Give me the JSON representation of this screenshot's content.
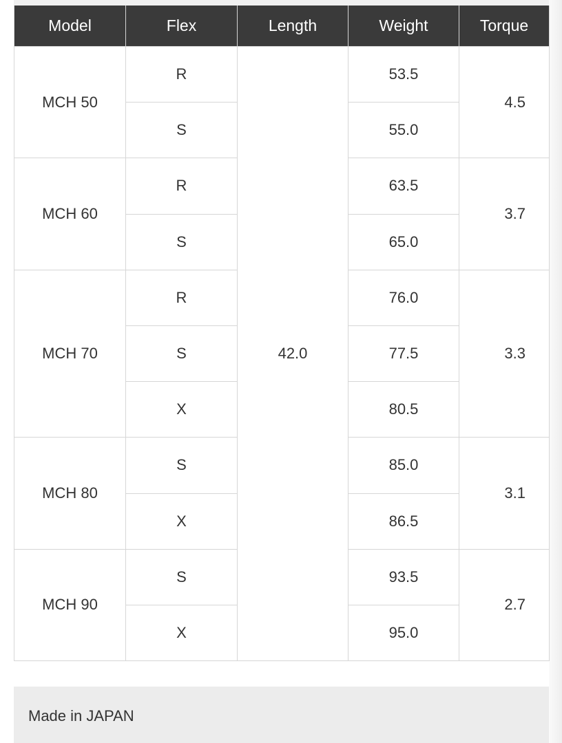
{
  "table": {
    "headers": [
      "Model",
      "Flex",
      "Length",
      "Weight",
      "Torque"
    ],
    "length": "42.0",
    "models": [
      {
        "name": "MCH 50",
        "torque": "4.5",
        "variants": [
          {
            "flex": "R",
            "weight": "53.5"
          },
          {
            "flex": "S",
            "weight": "55.0"
          }
        ]
      },
      {
        "name": "MCH 60",
        "torque": "3.7",
        "variants": [
          {
            "flex": "R",
            "weight": "63.5"
          },
          {
            "flex": "S",
            "weight": "65.0"
          }
        ]
      },
      {
        "name": "MCH 70",
        "torque": "3.3",
        "variants": [
          {
            "flex": "R",
            "weight": "76.0"
          },
          {
            "flex": "S",
            "weight": "77.5"
          },
          {
            "flex": "X",
            "weight": "80.5"
          }
        ]
      },
      {
        "name": "MCH 80",
        "torque": "3.1",
        "variants": [
          {
            "flex": "S",
            "weight": "85.0"
          },
          {
            "flex": "X",
            "weight": "86.5"
          }
        ]
      },
      {
        "name": "MCH 90",
        "torque": "2.7",
        "variants": [
          {
            "flex": "S",
            "weight": "93.5"
          },
          {
            "flex": "X",
            "weight": "95.0"
          }
        ]
      }
    ]
  },
  "footer": {
    "text": "Made in JAPAN"
  },
  "colors": {
    "header_bg": "#3a3a3a",
    "border": "#d6d6d6",
    "footer_bg": "#ececec"
  }
}
